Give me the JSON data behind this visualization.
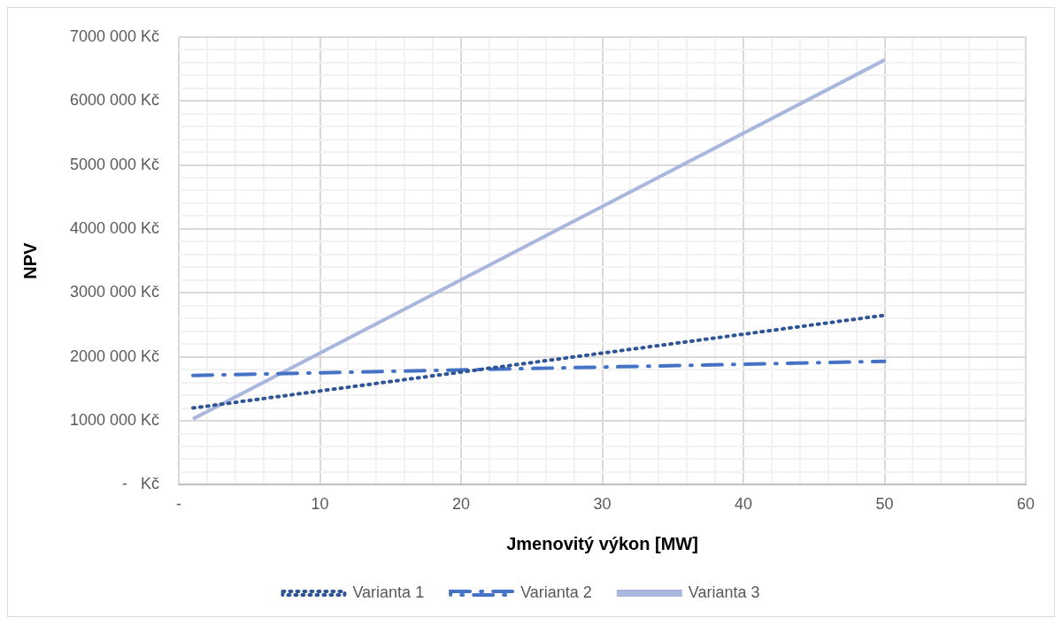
{
  "chart_data": {
    "type": "line",
    "xlabel": "Jmenovitý výkon [MW]",
    "ylabel": "NPV",
    "x": [
      1,
      50
    ],
    "series": [
      {
        "name": "Varianta 1",
        "color": "#2f5597",
        "values": [
          1200000,
          2650000
        ],
        "line_style": "dotted"
      },
      {
        "name": "Varianta 2",
        "color": "#4472c4",
        "values": [
          1710000,
          1930000
        ],
        "line_style": "dashed"
      },
      {
        "name": "Varianta 3",
        "color": "#a9b7de",
        "values": [
          1030000,
          6640000
        ],
        "line_style": "solid"
      }
    ],
    "xlim": [
      0,
      60
    ],
    "xticks": [
      {
        "value": 0,
        "label": "-"
      },
      {
        "value": 2,
        "label": null
      },
      {
        "value": 4,
        "label": null
      },
      {
        "value": 6,
        "label": null
      },
      {
        "value": 8,
        "label": null
      },
      10,
      {
        "value": 12,
        "label": null
      },
      {
        "value": 14,
        "label": null
      },
      {
        "value": 16,
        "label": null
      },
      {
        "value": 18,
        "label": null
      },
      20,
      {
        "value": 22,
        "label": null
      },
      {
        "value": 24,
        "label": null
      },
      {
        "value": 26,
        "label": null
      },
      {
        "value": 28,
        "label": null
      },
      30,
      {
        "value": 32,
        "label": null
      },
      {
        "value": 34,
        "label": null
      },
      {
        "value": 36,
        "label": null
      },
      {
        "value": 38,
        "label": null
      },
      40,
      {
        "value": 42,
        "label": null
      },
      {
        "value": 44,
        "label": null
      },
      {
        "value": 46,
        "label": null
      },
      {
        "value": 48,
        "label": null
      },
      50,
      {
        "value": 52,
        "label": null
      },
      {
        "value": 54,
        "label": null
      },
      {
        "value": 56,
        "label": null
      },
      {
        "value": 58,
        "label": null
      },
      60
    ],
    "ylim": [
      0,
      7000000
    ],
    "yticks": [
      {
        "value": 0,
        "label": "-   Kč"
      },
      {
        "value": 200000,
        "label": null
      },
      {
        "value": 400000,
        "label": null
      },
      {
        "value": 600000,
        "label": null
      },
      {
        "value": 800000,
        "label": null
      },
      {
        "value": 1000000,
        "label": "1000 000 Kč"
      },
      {
        "value": 1200000,
        "label": null
      },
      {
        "value": 1400000,
        "label": null
      },
      {
        "value": 1600000,
        "label": null
      },
      {
        "value": 1800000,
        "label": null
      },
      {
        "value": 2000000,
        "label": "2000 000 Kč"
      },
      {
        "value": 2200000,
        "label": null
      },
      {
        "value": 2400000,
        "label": null
      },
      {
        "value": 2600000,
        "label": null
      },
      {
        "value": 2800000,
        "label": null
      },
      {
        "value": 3000000,
        "label": "3000 000 Kč"
      },
      {
        "value": 3200000,
        "label": null
      },
      {
        "value": 3400000,
        "label": null
      },
      {
        "value": 3600000,
        "label": null
      },
      {
        "value": 3800000,
        "label": null
      },
      {
        "value": 4000000,
        "label": "4000 000 Kč"
      },
      {
        "value": 4200000,
        "label": null
      },
      {
        "value": 4400000,
        "label": null
      },
      {
        "value": 4600000,
        "label": null
      },
      {
        "value": 4800000,
        "label": null
      },
      {
        "value": 5000000,
        "label": "5000 000 Kč"
      },
      {
        "value": 5200000,
        "label": null
      },
      {
        "value": 5400000,
        "label": null
      },
      {
        "value": 5600000,
        "label": null
      },
      {
        "value": 5800000,
        "label": null
      },
      {
        "value": 6000000,
        "label": "6000 000 Kč"
      },
      {
        "value": 6200000,
        "label": null
      },
      {
        "value": 6400000,
        "label": null
      },
      {
        "value": 6600000,
        "label": null
      },
      {
        "value": 6800000,
        "label": null
      },
      {
        "value": 7000000,
        "label": "7000 000 Kč"
      }
    ],
    "grid": true,
    "legend": "bottom",
    "marker": "none"
  }
}
